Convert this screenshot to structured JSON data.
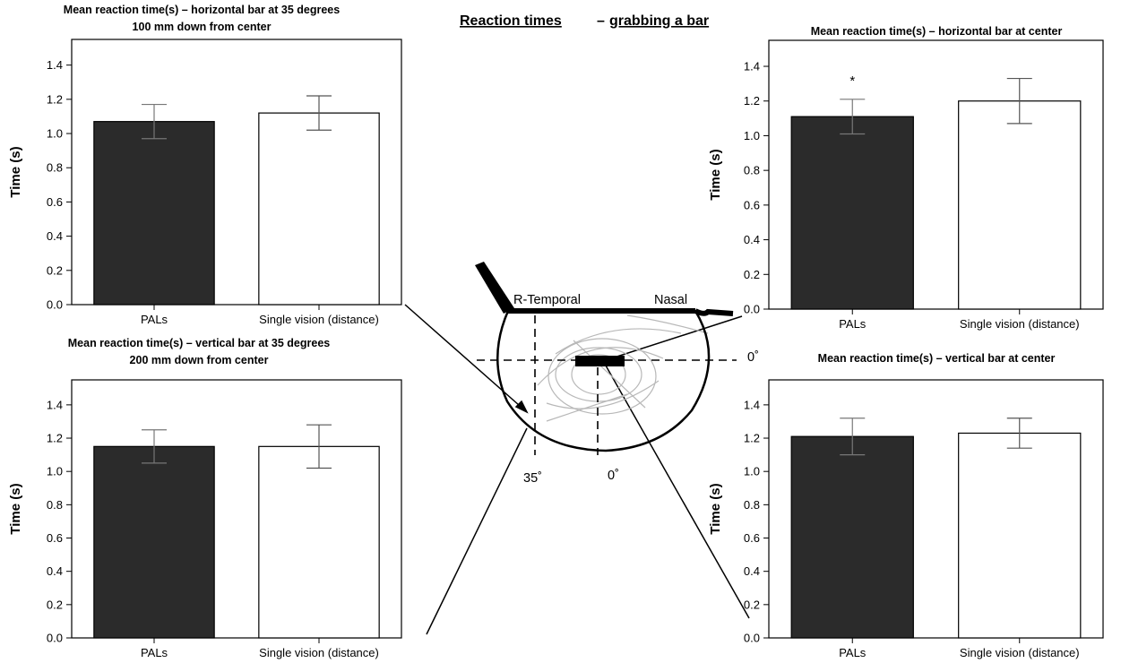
{
  "heading": {
    "part1": "Reaction times",
    "separator": "–",
    "part2": "grabbing a bar"
  },
  "diagram": {
    "label_temporal": "R-Temporal",
    "label_nasal": "Nasal",
    "label_zero_right": "0˚",
    "label_35": "35˚",
    "label_zero_bottom": "0˚"
  },
  "chart_data": [
    {
      "type": "bar",
      "title": "Mean reaction time(s) – horizontal bar at 35 degrees",
      "subtitle": "100 mm down from center",
      "categories": [
        "PALs",
        "Single vision (distance)"
      ],
      "values": [
        1.07,
        1.12
      ],
      "errors": [
        0.1,
        0.1
      ],
      "colors": [
        "#2b2b2b",
        "#ffffff"
      ],
      "ylabel": "Time (s)",
      "ylim": [
        0,
        1.55
      ],
      "yticks": [
        "0.0",
        "0.2",
        "0.4",
        "0.6",
        "0.8",
        "1.0",
        "1.2",
        "1.4"
      ],
      "annotations": []
    },
    {
      "type": "bar",
      "title": "Mean reaction time(s) – horizontal bar at center",
      "subtitle": "",
      "categories": [
        "PALs",
        "Single vision (distance)"
      ],
      "values": [
        1.11,
        1.2
      ],
      "errors": [
        0.1,
        0.13
      ],
      "colors": [
        "#2b2b2b",
        "#ffffff"
      ],
      "ylabel": "Time (s)",
      "ylim": [
        0,
        1.55
      ],
      "yticks": [
        "0.0",
        "0.2",
        "0.4",
        "0.6",
        "0.8",
        "1.0",
        "1.2",
        "1.4"
      ],
      "annotations": [
        "*",
        ""
      ]
    },
    {
      "type": "bar",
      "title": "Mean reaction time(s) – vertical bar at 35 degrees",
      "subtitle": "200 mm down from center",
      "categories": [
        "PALs",
        "Single vision (distance)"
      ],
      "values": [
        1.15,
        1.15
      ],
      "errors": [
        0.1,
        0.13
      ],
      "colors": [
        "#2b2b2b",
        "#ffffff"
      ],
      "ylabel": "Time (s)",
      "ylim": [
        0,
        1.55
      ],
      "yticks": [
        "0.0",
        "0.2",
        "0.4",
        "0.6",
        "0.8",
        "1.0",
        "1.2",
        "1.4"
      ],
      "annotations": []
    },
    {
      "type": "bar",
      "title": "Mean reaction time(s) – vertical bar at center",
      "subtitle": "",
      "categories": [
        "PALs",
        "Single vision (distance)"
      ],
      "values": [
        1.21,
        1.23
      ],
      "errors": [
        0.11,
        0.09
      ],
      "colors": [
        "#2b2b2b",
        "#ffffff"
      ],
      "ylabel": "Time (s)",
      "ylim": [
        0,
        1.55
      ],
      "yticks": [
        "0.0",
        "0.2",
        "0.4",
        "0.6",
        "0.8",
        "1.0",
        "1.2",
        "1.4"
      ],
      "annotations": []
    }
  ]
}
